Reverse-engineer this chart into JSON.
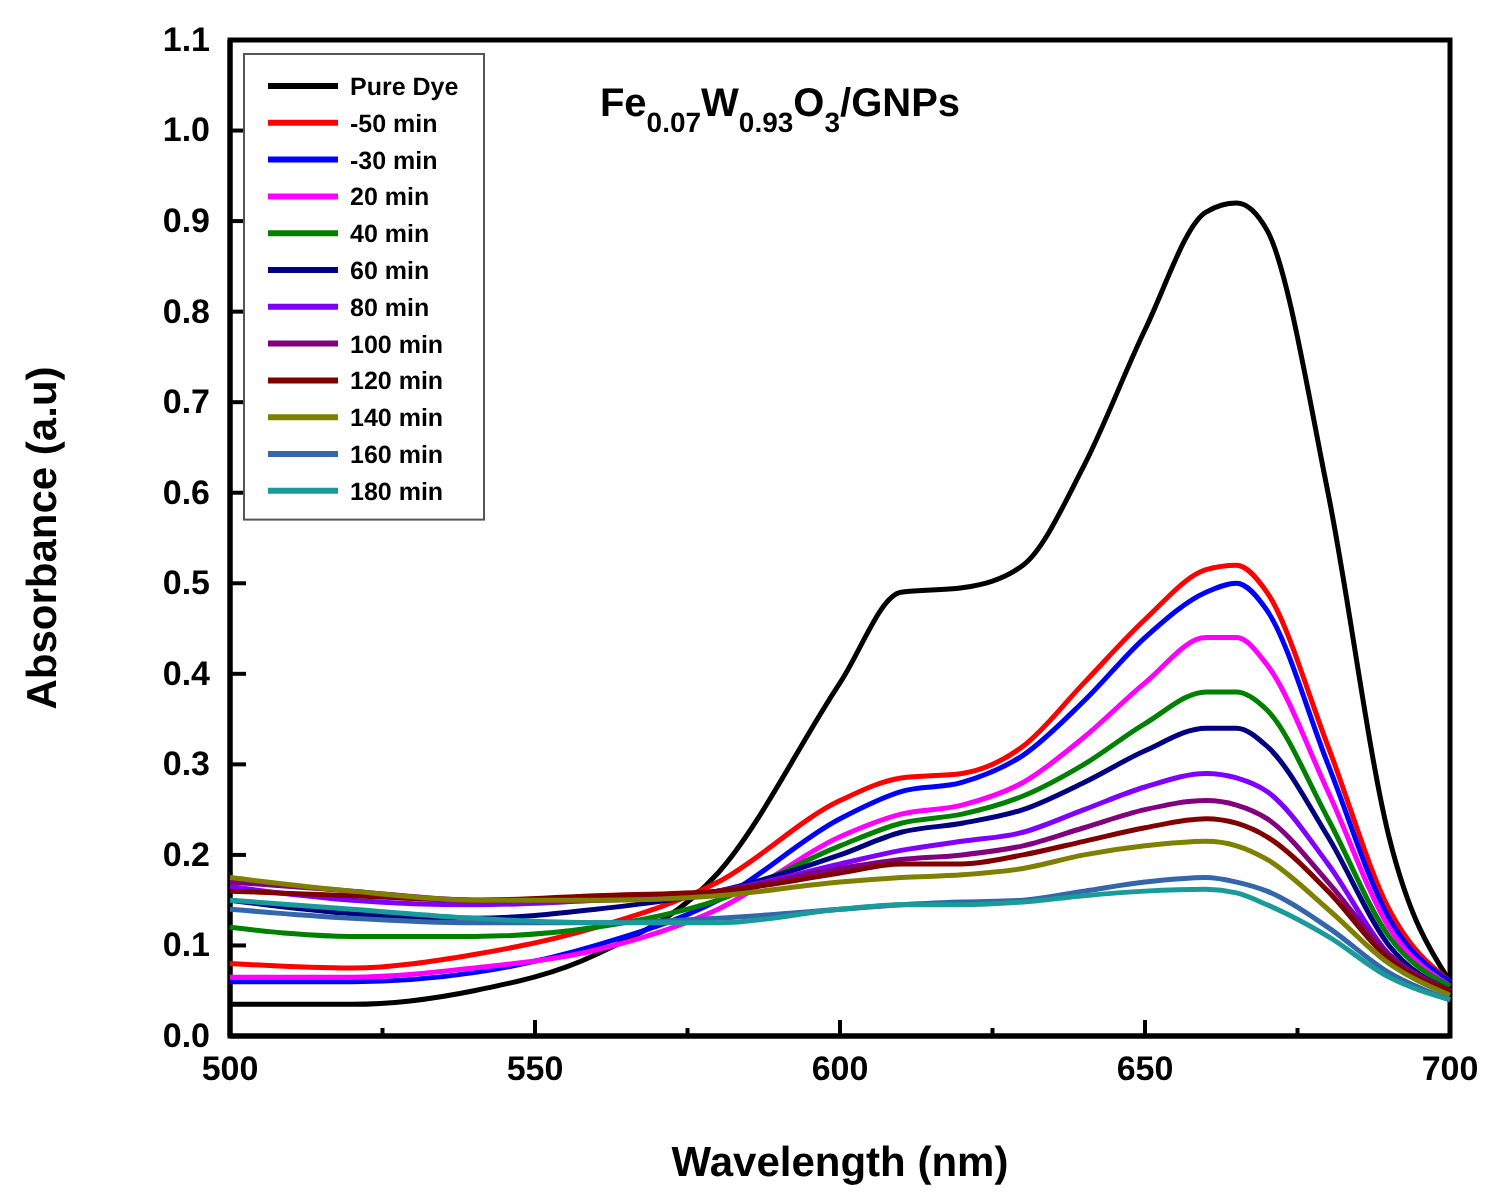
{
  "chart_data": {
    "type": "line",
    "title": "Fe$_{0.07}$W$_{0.93}$O$_{3}$/GNPs",
    "xlabel": "Wavelength (nm)",
    "ylabel": "Absorbance (a.u)",
    "x": [
      500,
      520,
      540,
      560,
      580,
      600,
      610,
      620,
      630,
      640,
      650,
      660,
      665,
      670,
      680,
      690,
      700
    ],
    "xlim": [
      500,
      700
    ],
    "ylim": [
      0,
      1.1
    ],
    "xticks": [
      500,
      {
        "value": 525,
        "label": null
      },
      550,
      {
        "value": 575,
        "label": null
      },
      600,
      {
        "value": 625,
        "label": null
      },
      650,
      {
        "value": 675,
        "label": null
      },
      700
    ],
    "yticks": [
      {
        "value": 0,
        "label": "0.0"
      },
      0.1,
      0.2,
      0.3,
      0.4,
      0.5,
      0.6,
      0.7,
      0.8,
      0.9,
      {
        "value": 1,
        "label": "1.0"
      },
      1.1
    ],
    "legend": "top left",
    "grid": false,
    "marker": "none",
    "line_style": "solid",
    "series": [
      {
        "name": "Pure Dye",
        "color": "#000000",
        "values": [
          0.035,
          0.035,
          0.05,
          0.09,
          0.18,
          0.39,
          0.49,
          0.495,
          0.52,
          0.63,
          0.78,
          0.91,
          0.92,
          0.89,
          0.6,
          0.22,
          0.06
        ]
      },
      {
        "name": "-50 min",
        "color": "#ff0000",
        "values": [
          0.08,
          0.075,
          0.09,
          0.12,
          0.17,
          0.26,
          0.285,
          0.29,
          0.32,
          0.39,
          0.46,
          0.515,
          0.52,
          0.49,
          0.32,
          0.14,
          0.06
        ]
      },
      {
        "name": "-30 min",
        "color": "#0000ff",
        "values": [
          0.06,
          0.06,
          0.07,
          0.1,
          0.15,
          0.24,
          0.27,
          0.28,
          0.31,
          0.37,
          0.44,
          0.49,
          0.5,
          0.47,
          0.3,
          0.13,
          0.06
        ]
      },
      {
        "name": "20 min",
        "color": "#ff00ff",
        "values": [
          0.065,
          0.065,
          0.075,
          0.095,
          0.14,
          0.22,
          0.245,
          0.255,
          0.28,
          0.33,
          0.39,
          0.44,
          0.44,
          0.41,
          0.27,
          0.12,
          0.055
        ]
      },
      {
        "name": "40 min",
        "color": "#008000",
        "values": [
          0.12,
          0.11,
          0.11,
          0.12,
          0.15,
          0.21,
          0.235,
          0.245,
          0.265,
          0.3,
          0.345,
          0.38,
          0.38,
          0.36,
          0.24,
          0.11,
          0.055
        ]
      },
      {
        "name": "60 min",
        "color": "#000080",
        "values": [
          0.15,
          0.135,
          0.13,
          0.14,
          0.16,
          0.2,
          0.225,
          0.235,
          0.25,
          0.28,
          0.315,
          0.34,
          0.34,
          0.32,
          0.22,
          0.1,
          0.05
        ]
      },
      {
        "name": "80 min",
        "color": "#8000ff",
        "values": [
          0.165,
          0.15,
          0.145,
          0.15,
          0.16,
          0.19,
          0.205,
          0.215,
          0.225,
          0.25,
          0.275,
          0.29,
          0.285,
          0.27,
          0.19,
          0.09,
          0.05
        ]
      },
      {
        "name": "100 min",
        "color": "#800080",
        "values": [
          0.17,
          0.16,
          0.15,
          0.15,
          0.16,
          0.185,
          0.195,
          0.2,
          0.21,
          0.23,
          0.25,
          0.26,
          0.255,
          0.24,
          0.17,
          0.09,
          0.05
        ]
      },
      {
        "name": "120 min",
        "color": "#800000",
        "values": [
          0.16,
          0.155,
          0.15,
          0.155,
          0.16,
          0.18,
          0.19,
          0.19,
          0.2,
          0.215,
          0.23,
          0.24,
          0.235,
          0.22,
          0.16,
          0.085,
          0.05
        ]
      },
      {
        "name": "140 min",
        "color": "#808000",
        "values": [
          0.175,
          0.16,
          0.15,
          0.15,
          0.155,
          0.17,
          0.175,
          0.178,
          0.185,
          0.2,
          0.21,
          0.215,
          0.21,
          0.195,
          0.14,
          0.08,
          0.045
        ]
      },
      {
        "name": "160 min",
        "color": "#3366aa",
        "values": [
          0.14,
          0.13,
          0.125,
          0.125,
          0.13,
          0.14,
          0.145,
          0.148,
          0.15,
          0.16,
          0.17,
          0.175,
          0.17,
          0.16,
          0.12,
          0.07,
          0.04
        ]
      },
      {
        "name": "180 min",
        "color": "#1a9a9a",
        "values": [
          0.15,
          0.14,
          0.13,
          0.125,
          0.125,
          0.14,
          0.145,
          0.145,
          0.148,
          0.155,
          0.16,
          0.162,
          0.158,
          0.145,
          0.11,
          0.065,
          0.04
        ]
      }
    ]
  }
}
